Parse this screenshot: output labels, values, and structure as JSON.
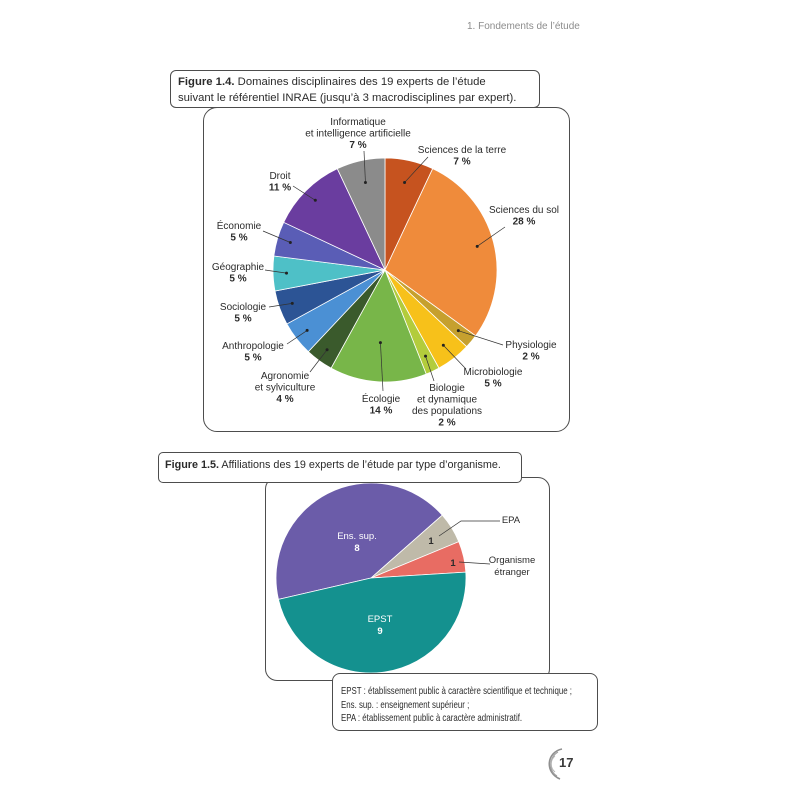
{
  "header": {
    "running_title": "1. Fondements de l’étude"
  },
  "chart_data": [
    {
      "type": "pie",
      "figure_label": "Figure 1.4.",
      "title_lines": [
        "Domaines disciplinaires des 19 experts de l’étude",
        "suivant le référentiel INRAE (jusqu’à 3 macrodisciplines par expert)."
      ],
      "slices": [
        {
          "label_lines": [
            "Sciences de la terre"
          ],
          "value": 7,
          "value_label": "7 %",
          "color": "#c6531f"
        },
        {
          "label_lines": [
            "Sciences du sol"
          ],
          "value": 28,
          "value_label": "28 %",
          "color": "#ef8b3b"
        },
        {
          "label_lines": [
            "Physiologie"
          ],
          "value": 2,
          "value_label": "2 %",
          "color": "#c6a02e"
        },
        {
          "label_lines": [
            "Microbiologie"
          ],
          "value": 5,
          "value_label": "5 %",
          "color": "#f7c11a"
        },
        {
          "label_lines": [
            "Biologie",
            "et dynamique",
            "des populations"
          ],
          "value": 2,
          "value_label": "2 %",
          "color": "#b3cc3c"
        },
        {
          "label_lines": [
            "Écologie"
          ],
          "value": 14,
          "value_label": "14 %",
          "color": "#78b649"
        },
        {
          "label_lines": [
            "Agronomie",
            "et sylviculture"
          ],
          "value": 4,
          "value_label": "4 %",
          "color": "#3a5a2c"
        },
        {
          "label_lines": [
            "Anthropologie"
          ],
          "value": 5,
          "value_label": "5 %",
          "color": "#4b90d4"
        },
        {
          "label_lines": [
            "Sociologie"
          ],
          "value": 5,
          "value_label": "5 %",
          "color": "#2c5495"
        },
        {
          "label_lines": [
            "Géographie"
          ],
          "value": 5,
          "value_label": "5 %",
          "color": "#4ec0c7"
        },
        {
          "label_lines": [
            "Économie"
          ],
          "value": 5,
          "value_label": "5 %",
          "color": "#5a5db6"
        },
        {
          "label_lines": [
            "Droit"
          ],
          "value": 11,
          "value_label": "11 %",
          "color": "#6a3d9f"
        },
        {
          "label_lines": [
            "Informatique",
            "et intelligence artificielle"
          ],
          "value": 7,
          "value_label": "7 %",
          "color": "#8b8b8b"
        }
      ]
    },
    {
      "type": "pie",
      "figure_label": "Figure 1.5.",
      "title": "Affiliations des 19 experts de l’étude par type d’organisme.",
      "slices": [
        {
          "label_lines": [
            "Ens. sup."
          ],
          "value": 8,
          "value_label": "8",
          "color": "#6b5ca9"
        },
        {
          "label_lines": [
            "EPA"
          ],
          "value": 1,
          "value_label": "1",
          "color": "#bfbaa9"
        },
        {
          "label_lines": [
            "Organisme",
            "étranger"
          ],
          "value": 1,
          "value_label": "1",
          "color": "#e86c63"
        },
        {
          "label_lines": [
            "EPST"
          ],
          "value": 9,
          "value_label": "9",
          "color": "#14918f"
        }
      ],
      "notes": [
        "EPST : établissement public à caractère scientifique et technique ;",
        "Ens. sup. : enseignement supérieur ;",
        "EPA : établissement public à caractère administratif."
      ]
    }
  ],
  "footer": {
    "page_number": "17"
  }
}
